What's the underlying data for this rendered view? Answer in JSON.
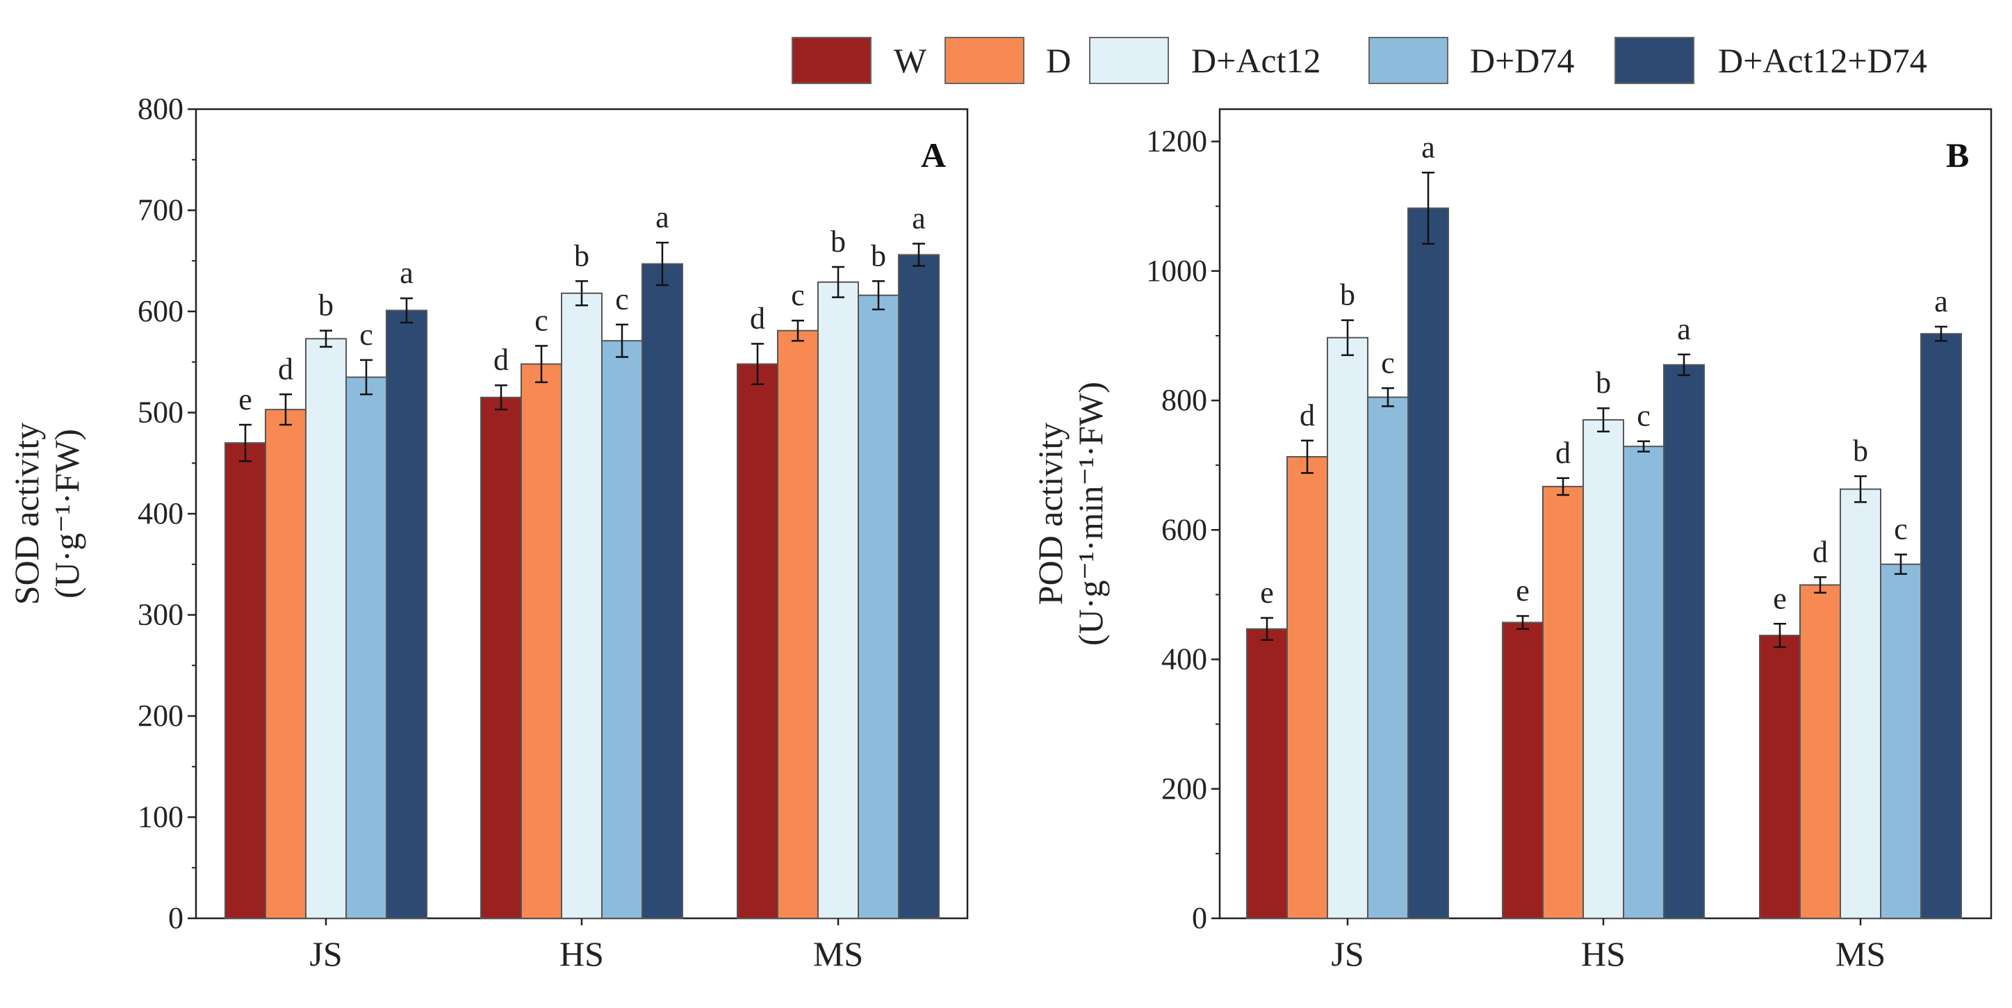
{
  "legend": [
    "W",
    "D",
    "D+Act12",
    "D+D74",
    "D+Act12+D74"
  ],
  "colors": [
    "#9b2120",
    "#f78a52",
    "#e2f1f8",
    "#8dbbdc",
    "#2d4a72"
  ],
  "chart_data": [
    {
      "type": "bar",
      "panel_label": "A",
      "ylabel": "SOD activity",
      "ylabel_unit": "(U·g⁻¹·FW)",
      "ylim": [
        0,
        800
      ],
      "yticks": [
        "0",
        "100",
        "200",
        "300",
        "400",
        "500",
        "600",
        "700",
        "800"
      ],
      "categories": [
        "JS",
        "HS",
        "MS"
      ],
      "series": [
        {
          "name": "W",
          "values": [
            470,
            515,
            548
          ],
          "errors": [
            18,
            12,
            20
          ],
          "letters": [
            "e",
            "d",
            "d"
          ]
        },
        {
          "name": "D",
          "values": [
            503,
            548,
            581
          ],
          "errors": [
            15,
            18,
            10
          ],
          "letters": [
            "d",
            "c",
            "c"
          ]
        },
        {
          "name": "D+Act12",
          "values": [
            573,
            618,
            629
          ],
          "errors": [
            8,
            12,
            15
          ],
          "letters": [
            "b",
            "b",
            "b"
          ]
        },
        {
          "name": "D+D74",
          "values": [
            535,
            571,
            616
          ],
          "errors": [
            17,
            16,
            14
          ],
          "letters": [
            "c",
            "c",
            "b"
          ]
        },
        {
          "name": "D+Act12+D74",
          "values": [
            601,
            647,
            656
          ],
          "errors": [
            12,
            21,
            11
          ],
          "letters": [
            "a",
            "a",
            "a"
          ]
        }
      ]
    },
    {
      "type": "bar",
      "panel_label": "B",
      "ylabel": "POD activity",
      "ylabel_unit": "(U·g⁻¹·min⁻¹·FW)",
      "ylim": [
        0,
        1250
      ],
      "yticks": [
        "0",
        "200",
        "400",
        "600",
        "800",
        "1000",
        "1200"
      ],
      "categories": [
        "JS",
        "HS",
        "MS"
      ],
      "series": [
        {
          "name": "W",
          "values": [
            447,
            457,
            437
          ],
          "errors": [
            17,
            10,
            18
          ],
          "letters": [
            "e",
            "e",
            "e"
          ]
        },
        {
          "name": "D",
          "values": [
            713,
            667,
            515
          ],
          "errors": [
            25,
            13,
            12
          ],
          "letters": [
            "d",
            "d",
            "d"
          ]
        },
        {
          "name": "D+Act12",
          "values": [
            897,
            770,
            663
          ],
          "errors": [
            27,
            18,
            20
          ],
          "letters": [
            "b",
            "b",
            "b"
          ]
        },
        {
          "name": "D+D74",
          "values": [
            805,
            729,
            547
          ],
          "errors": [
            14,
            8,
            15
          ],
          "letters": [
            "c",
            "c",
            "c"
          ]
        },
        {
          "name": "D+Act12+D74",
          "values": [
            1097,
            855,
            903
          ],
          "errors": [
            55,
            16,
            11
          ],
          "letters": [
            "a",
            "a",
            "a"
          ]
        }
      ]
    }
  ]
}
